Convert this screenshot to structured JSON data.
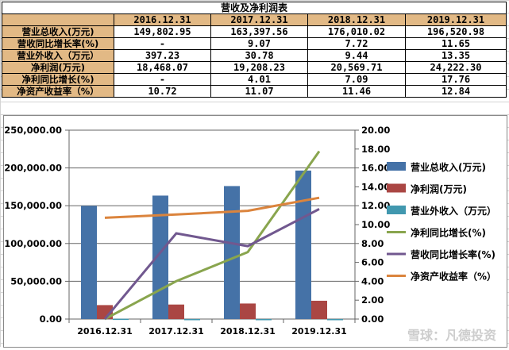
{
  "table": {
    "title": "营收及净利润表",
    "columns": [
      "2016.12.31",
      "2017.12.31",
      "2018.12.31",
      "2019.12.31"
    ],
    "rows": [
      {
        "label": "营业总收入(万元)",
        "values": [
          "149,802.95",
          "163,397.56",
          "176,010.02",
          "196,520.98"
        ]
      },
      {
        "label": "营收同比增长率(%)",
        "values": [
          "-",
          "9.07",
          "7.72",
          "11.65"
        ]
      },
      {
        "label": "营业外收入（万元）",
        "values": [
          "397.23",
          "30.78",
          "9.44",
          "13.35"
        ]
      },
      {
        "label": "净利润(万元)",
        "values": [
          "18,468.07",
          "19,208.23",
          "20,569.71",
          "24,222.30"
        ]
      },
      {
        "label": "净利同比增长(%)",
        "values": [
          "-",
          "4.01",
          "7.09",
          "17.76"
        ]
      },
      {
        "label": "净资产收益率（%）",
        "values": [
          "10.72",
          "11.07",
          "11.46",
          "12.84"
        ]
      }
    ]
  },
  "chart_data": {
    "type": "bar+line",
    "categories": [
      "2016.12.31",
      "2017.12.31",
      "2018.12.31",
      "2019.12.31"
    ],
    "y_left": {
      "min": 0,
      "max": 250000,
      "ticks": [
        "0.00",
        "50,000.00",
        "100,000.00",
        "150,000.00",
        "200,000.00",
        "250,000.00"
      ]
    },
    "y_right": {
      "min": 0,
      "max": 20,
      "ticks": [
        "0.00",
        "2.00",
        "4.00",
        "6.00",
        "8.00",
        "10.00",
        "12.00",
        "14.00",
        "16.00",
        "18.00",
        "20.00"
      ]
    },
    "grid": true,
    "legend_position": "right",
    "series": [
      {
        "name": "营业总收入(万元)",
        "kind": "bar",
        "axis": "left",
        "color": "#4572a7",
        "values": [
          149802.95,
          163397.56,
          176010.02,
          196520.98
        ]
      },
      {
        "name": "净利润(万元)",
        "kind": "bar",
        "axis": "left",
        "color": "#aa4643",
        "values": [
          18468.07,
          19208.23,
          20569.71,
          24222.3
        ]
      },
      {
        "name": "营业外收入（万元）",
        "kind": "bar",
        "axis": "left",
        "color": "#4198af",
        "values": [
          397.23,
          30.78,
          9.44,
          13.35
        ]
      },
      {
        "name": "净利同比增长(%)",
        "kind": "line",
        "axis": "right",
        "color": "#89a54e",
        "values": [
          0,
          4.01,
          7.09,
          17.76
        ]
      },
      {
        "name": "营收同比增长率(%)",
        "kind": "line",
        "axis": "right",
        "color": "#71588f",
        "values": [
          0,
          9.07,
          7.72,
          11.65
        ]
      },
      {
        "name": "净资产收益率（%）",
        "kind": "line",
        "axis": "right",
        "color": "#db843d",
        "values": [
          10.72,
          11.07,
          11.46,
          12.84
        ]
      }
    ]
  },
  "watermark": "雪球：凡德投资"
}
